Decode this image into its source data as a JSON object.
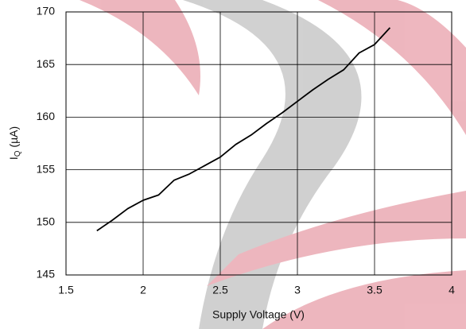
{
  "chart_data": {
    "type": "line",
    "xlabel": "Supply Voltage (V)",
    "ylabel": {
      "base": "I",
      "sub": "Q",
      "rest": " (µA)"
    },
    "x": [
      1.7,
      1.8,
      1.9,
      2.0,
      2.1,
      2.2,
      2.3,
      2.4,
      2.5,
      2.6,
      2.7,
      2.8,
      2.9,
      3.0,
      3.1,
      3.2,
      3.3,
      3.4,
      3.5,
      3.6
    ],
    "series": [
      {
        "color": "#000000",
        "values": [
          149.2,
          150.2,
          151.3,
          152.1,
          152.6,
          154.0,
          154.6,
          155.4,
          156.2,
          157.4,
          158.3,
          159.4,
          160.4,
          161.5,
          162.6,
          163.6,
          164.5,
          166.1,
          166.9,
          168.5
        ]
      }
    ],
    "xlim": [
      1.5,
      4
    ],
    "xticks": [
      1.5,
      2,
      2.5,
      3,
      3.5,
      4
    ],
    "ylim": [
      145,
      170
    ],
    "yticks": [
      145,
      150,
      155,
      160,
      165,
      170
    ],
    "grid": true
  }
}
